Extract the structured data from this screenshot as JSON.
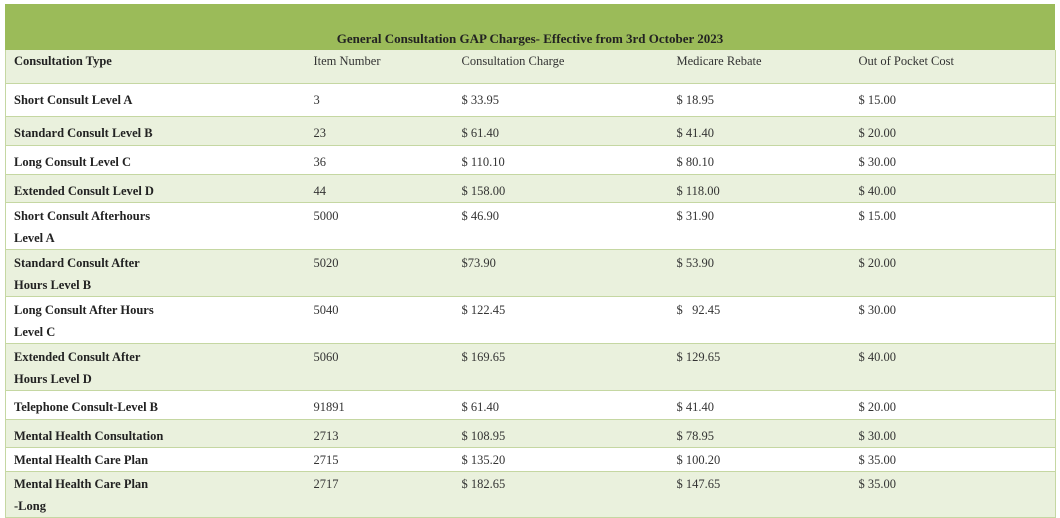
{
  "title": "General Consultation GAP Charges- Effective from 3rd October 2023",
  "headers": [
    "Consultation Type",
    "Item Number",
    "Consultation Charge",
    "Medicare Rebate",
    "Out of Pocket Cost"
  ],
  "rows": [
    {
      "type": "Short Consult Level A",
      "item": "3",
      "charge": "$ 33.95",
      "rebate": "$ 18.95",
      "cost": "$ 15.00"
    },
    {
      "type": "Standard Consult Level B",
      "item": "23",
      "charge": "$ 61.40",
      "rebate": "$ 41.40",
      "cost": "$ 20.00"
    },
    {
      "type": "Long Consult Level C",
      "item": "36",
      "charge": "$ 110.10",
      "rebate": "$ 80.10",
      "cost": "$ 30.00"
    },
    {
      "type": "Extended Consult Level D",
      "item": "44",
      "charge": "$ 158.00",
      "rebate": "$ 118.00",
      "cost": "$ 40.00"
    },
    {
      "type": "Short Consult Afterhours",
      "type2": "Level A",
      "item": "5000",
      "charge": "$ 46.90",
      "rebate": "$ 31.90",
      "cost": "$ 15.00"
    },
    {
      "type": "Standard Consult After",
      "type2": "Hours Level B",
      "item": "5020",
      "charge": "$73.90",
      "rebate": "$ 53.90",
      "cost": "$ 20.00"
    },
    {
      "type": "Long Consult After Hours",
      "type2": "Level C",
      "item": "5040",
      "charge": "$ 122.45",
      "rebate": "$   92.45",
      "cost": "$ 30.00"
    },
    {
      "type": "Extended Consult After",
      "type2": "Hours Level D",
      "item": "5060",
      "charge": "$ 169.65",
      "rebate": "$ 129.65",
      "cost": "$ 40.00"
    },
    {
      "type": "Telephone Consult-Level B",
      "item": "91891",
      "charge": "$ 61.40",
      "rebate": "$ 41.40",
      "cost": "$ 20.00"
    },
    {
      "type": "Mental Health Consultation",
      "item": "2713",
      "charge": "$ 108.95",
      "rebate": "$ 78.95",
      "cost": "$ 30.00"
    },
    {
      "type": "Mental Health Care Plan",
      "item": "2715",
      "charge": "$ 135.20",
      "rebate": "$ 100.20",
      "cost": "$ 35.00"
    },
    {
      "type": "Mental Health Care Plan",
      "type2": "-Long",
      "item": "2717",
      "charge": "$ 182.65",
      "rebate": "$ 147.65",
      "cost": "$ 35.00"
    }
  ]
}
